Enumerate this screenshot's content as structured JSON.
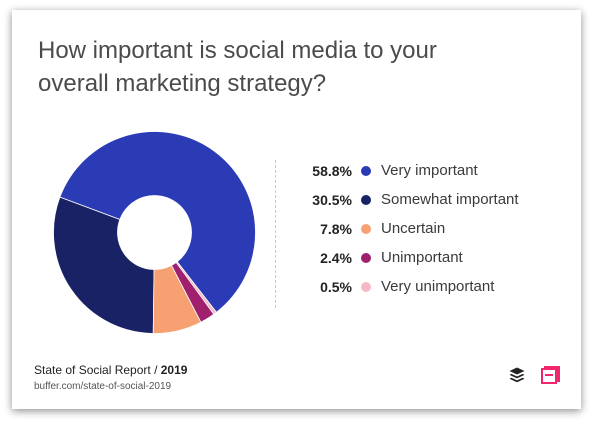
{
  "title_line1": "How important is social media to your",
  "title_line2": "overall marketing strategy?",
  "chart_data": {
    "type": "pie",
    "style": "donut",
    "title": "How important is social media to your overall marketing strategy?",
    "categories": [
      "Very important",
      "Somewhat important",
      "Uncertain",
      "Unimportant",
      "Very unimportant"
    ],
    "values": [
      58.8,
      30.5,
      7.8,
      2.4,
      0.5
    ],
    "labels": [
      "58.8%",
      "30.5%",
      "7.8%",
      "2.4%",
      "0.5%"
    ],
    "colors": [
      "#2b3bb6",
      "#1a2266",
      "#f7a072",
      "#a0206e",
      "#f5b8c4"
    ],
    "legend": "right"
  },
  "footer": {
    "source_name": "State of Social Report / ",
    "source_year": "2019",
    "source_url": "buffer.com/state-of-social-2019"
  },
  "icons": {
    "buffer_logo": "buffer-logo-icon",
    "brand_logo": "brand-logo-icon"
  }
}
